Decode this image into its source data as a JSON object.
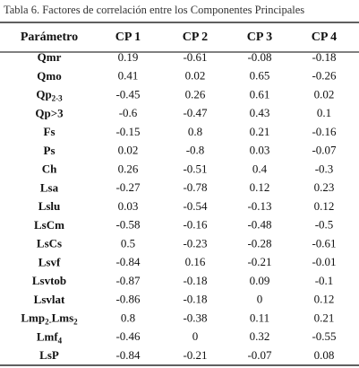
{
  "table": {
    "title": "Tabla 6. Factores de correlación entre los Componentes Principales",
    "header": [
      "Parámetro",
      "CP 1",
      "CP 2",
      "CP 3",
      "CP 4"
    ],
    "rows": [
      {
        "label": [
          "Qmr"
        ],
        "values": [
          0.19,
          -0.61,
          -0.08,
          -0.18
        ]
      },
      {
        "label": [
          "Qmo"
        ],
        "values": [
          0.41,
          0.02,
          0.65,
          -0.26
        ]
      },
      {
        "label": [
          "Qp",
          "2-3"
        ],
        "values": [
          -0.45,
          0.26,
          0.61,
          0.02
        ]
      },
      {
        "label": [
          "Qp>3"
        ],
        "values": [
          -0.6,
          -0.47,
          0.43,
          0.1
        ]
      },
      {
        "label": [
          "Fs"
        ],
        "values": [
          -0.15,
          0.8,
          0.21,
          -0.16
        ]
      },
      {
        "label": [
          "Ps"
        ],
        "values": [
          0.02,
          -0.8,
          0.03,
          -0.07
        ]
      },
      {
        "label": [
          "Ch"
        ],
        "values": [
          0.26,
          -0.51,
          0.4,
          -0.3
        ]
      },
      {
        "label": [
          "Lsa"
        ],
        "values": [
          -0.27,
          -0.78,
          0.12,
          0.23
        ]
      },
      {
        "label": [
          "Lslu"
        ],
        "values": [
          0.03,
          -0.54,
          -0.13,
          0.12
        ]
      },
      {
        "label": [
          "LsCm"
        ],
        "values": [
          -0.58,
          -0.16,
          -0.48,
          -0.5
        ]
      },
      {
        "label": [
          "LsCs"
        ],
        "values": [
          0.5,
          -0.23,
          -0.28,
          -0.61
        ]
      },
      {
        "label": [
          "Lsvf"
        ],
        "values": [
          -0.84,
          0.16,
          -0.21,
          -0.01
        ]
      },
      {
        "label": [
          "Lsvtob"
        ],
        "values": [
          -0.87,
          -0.18,
          0.09,
          -0.1
        ]
      },
      {
        "label": [
          "Lsvlat"
        ],
        "values": [
          -0.86,
          -0.18,
          0,
          0.12
        ]
      },
      {
        "label": [
          "Lmp",
          "2-",
          "Lms",
          "2"
        ],
        "values": [
          0.8,
          -0.38,
          0.11,
          0.21
        ]
      },
      {
        "label": [
          "Lmf",
          "4"
        ],
        "values": [
          -0.46,
          0,
          0.32,
          -0.55
        ]
      },
      {
        "label": [
          "LsP"
        ],
        "values": [
          -0.84,
          -0.21,
          -0.07,
          0.08
        ]
      }
    ]
  }
}
